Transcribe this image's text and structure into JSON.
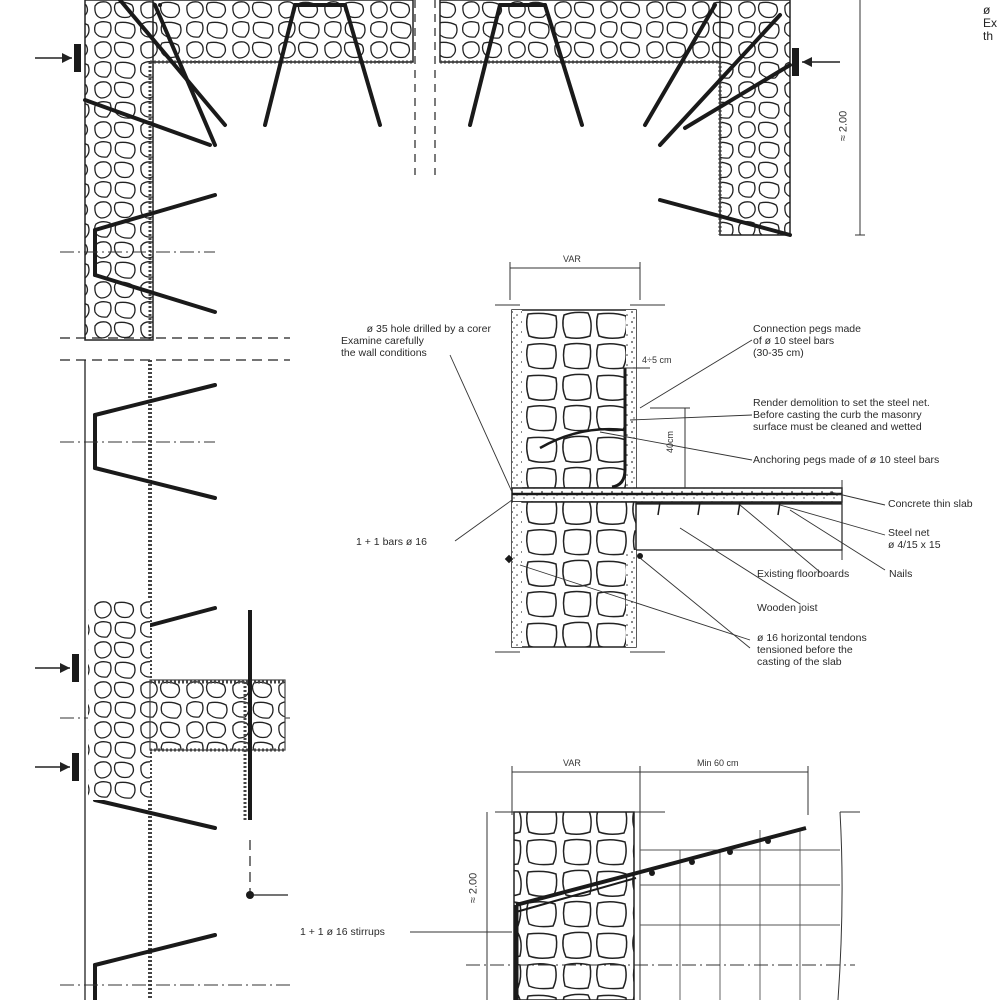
{
  "labels": {
    "hole_drilled": [
      "ø 35 hole drilled by a corer",
      "Examine carefully",
      "the wall conditions"
    ],
    "connection_pegs": [
      "Connection pegs made",
      "of ø 10 steel bars",
      "(30-35 cm)"
    ],
    "render_demolition": [
      "Render demolition to set the steel net.",
      "Before casting the curb the masonry",
      "surface must be cleaned and wetted"
    ],
    "anchoring_pegs": "Anchoring pegs made of  ø 10 steel bars",
    "concrete_slab": "Concrete thin slab",
    "steel_net": [
      "Steel net",
      "ø 4/15 x 15"
    ],
    "bars_16": "1 + 1 bars ø 16",
    "existing_floorboards": "Existing floorboards",
    "nails": "Nails",
    "wooden_joist": "Wooden joist",
    "tendons": [
      "ø 16 horizontal tendons",
      "tensioned before the",
      "casting of the slab"
    ],
    "stirrups": "1 + 1 ø 16 stirrups",
    "cut_text": [
      "ø",
      "Ex",
      "th"
    ]
  },
  "dimensions": {
    "var_top": "VAR",
    "var_bottom": "VAR",
    "min_60": "Min 60 cm",
    "dist_4_5": "4÷5 cm",
    "dist_40": "40cm",
    "height_top": "≈ 2.00",
    "height_bottom": "≈ 2.00"
  }
}
